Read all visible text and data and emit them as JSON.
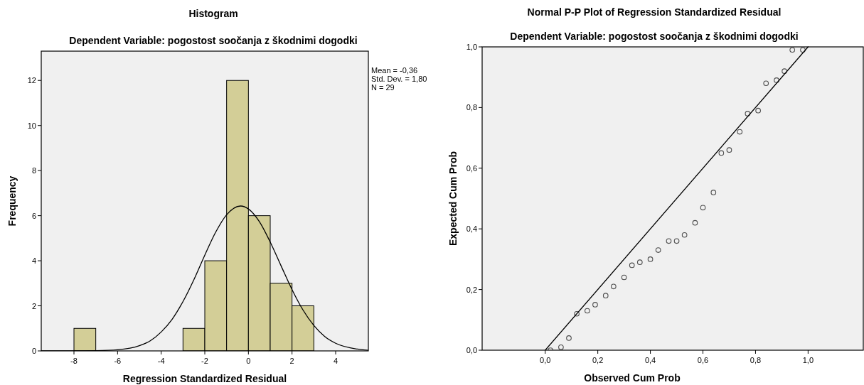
{
  "chart_data": [
    {
      "type": "histogram",
      "title": "Histogram",
      "subtitle": "Dependent Variable: pogostost soočanja z škodnimi dogodki",
      "xlabel": "Regression Standardized Residual",
      "ylabel": "Frequency",
      "annotations": [
        "Mean = -0,36",
        "Std. Dev. = 1,80",
        "N = 29"
      ],
      "bins": [
        -8,
        -7,
        -6,
        -5,
        -4,
        -3,
        -2,
        -1,
        0,
        1,
        2,
        3
      ],
      "values": [
        1,
        0,
        0,
        0,
        0,
        1,
        4,
        12,
        6,
        3,
        2
      ],
      "color": "#d3ce97",
      "series": [
        {
          "type": "line",
          "color": "#000000",
          "x": [
            -9.5,
            -8,
            -7,
            -6,
            -5,
            -4.5,
            -4,
            -3.5,
            -3,
            -2.5,
            -2,
            -1.5,
            -1,
            -0.36,
            0,
            0.5,
            1,
            1.5,
            2,
            2.5,
            3,
            3.5,
            4,
            5,
            5.5
          ],
          "values": [
            0,
            0,
            0.01,
            0.05,
            0.23,
            0.45,
            0.84,
            1.4,
            2.19,
            3.16,
            4.25,
            5.27,
            6.04,
            6.43,
            6.3,
            5.74,
            4.83,
            3.77,
            2.72,
            1.82,
            1.13,
            0.64,
            0.34,
            0.08,
            0.03
          ]
        }
      ],
      "xlim": [
        -9.5,
        5.5
      ],
      "ylim": [
        0,
        13.3
      ],
      "xticks": [
        -8,
        -6,
        -4,
        -2,
        0,
        2,
        4
      ],
      "yticks": [
        0,
        2,
        4,
        6,
        8,
        10,
        12
      ]
    },
    {
      "type": "scatter",
      "title": "Normal P-P Plot of Regression Standardized Residual",
      "subtitle": "Dependent Variable: pogostost soočanja z škodnimi dogodki",
      "xlabel": "Observed Cum Prob",
      "ylabel": "Expected Cum Prob",
      "series": [
        {
          "type": "scatter",
          "marker": "circle",
          "color": "#4d4d4d",
          "x": [
            0.02,
            0.06,
            0.09,
            0.12,
            0.16,
            0.19,
            0.23,
            0.26,
            0.3,
            0.33,
            0.36,
            0.4,
            0.43,
            0.47,
            0.5,
            0.53,
            0.57,
            0.6,
            0.64,
            0.67,
            0.7,
            0.74,
            0.77,
            0.81,
            0.84,
            0.88,
            0.91,
            0.94,
            0.98
          ],
          "values": [
            0,
            0.01,
            0.04,
            0.12,
            0.13,
            0.15,
            0.18,
            0.21,
            0.24,
            0.28,
            0.29,
            0.3,
            0.33,
            0.36,
            0.36,
            0.38,
            0.42,
            0.47,
            0.52,
            0.65,
            0.66,
            0.72,
            0.78,
            0.79,
            0.88,
            0.89,
            0.92,
            0.99,
            0.99
          ]
        },
        {
          "type": "line",
          "color": "#000000",
          "x": [
            0,
            1
          ],
          "values": [
            0,
            1
          ]
        }
      ],
      "xlim": [
        -0.24,
        1.21
      ],
      "ylim": [
        0,
        1
      ],
      "xticks": [
        {
          "value": 0,
          "label": "0,0"
        },
        {
          "value": 0.2,
          "label": "0,2"
        },
        {
          "value": 0.4,
          "label": "0,4"
        },
        {
          "value": 0.6,
          "label": "0,6"
        },
        {
          "value": 0.8,
          "label": "0,8"
        },
        {
          "value": 1,
          "label": "1,0"
        }
      ],
      "yticks": [
        {
          "value": 0,
          "label": "0,0"
        },
        {
          "value": 0.2,
          "label": "0,2"
        },
        {
          "value": 0.4,
          "label": "0,4"
        },
        {
          "value": 0.6,
          "label": "0,6"
        },
        {
          "value": 0.8,
          "label": "0,8"
        },
        {
          "value": 1,
          "label": "1,0"
        }
      ]
    }
  ]
}
